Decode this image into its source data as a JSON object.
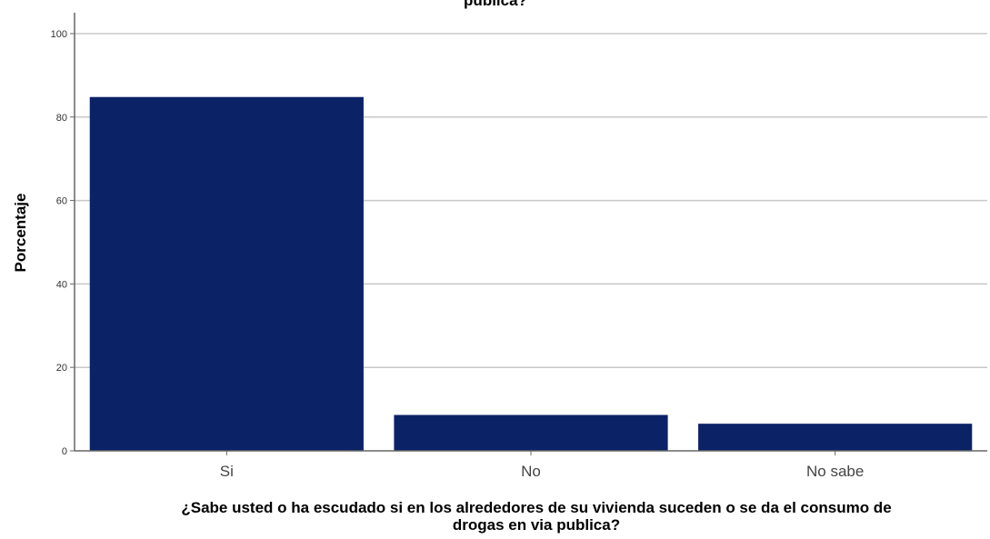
{
  "chart_data": {
    "type": "bar",
    "title": "publica?",
    "xlabel_line1": "¿Sabe usted o ha escudado si en los alrededores de su vivienda suceden o se da el consumo de",
    "xlabel_line2": "drogas en via publica?",
    "ylabel": "Porcentaje",
    "categories": [
      "Si",
      "No",
      "No sabe"
    ],
    "values": [
      84.8,
      8.6,
      6.5
    ],
    "ylim": [
      0,
      105
    ],
    "yticks": [
      0,
      20,
      40,
      60,
      80,
      100
    ],
    "grid": true,
    "bar_color": "#0b2266",
    "grid_color": "#c8c8c8"
  }
}
